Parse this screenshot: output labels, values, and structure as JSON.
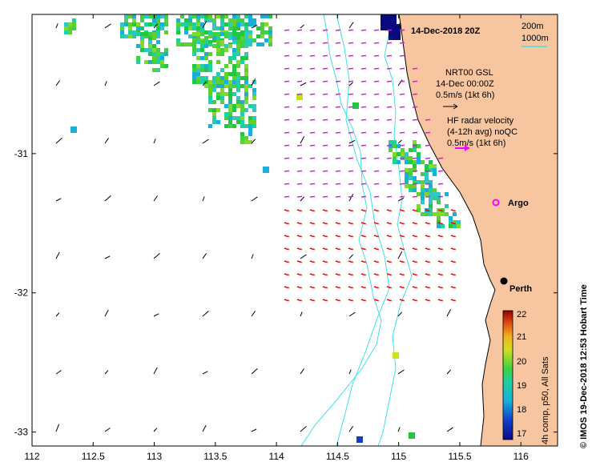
{
  "title": "14-Dec-2018 20Z",
  "depth_legend": {
    "contour1": "200m",
    "contour2": "1000m",
    "color": "#40e0e8"
  },
  "gsl_legend": {
    "line1": "NRT00 GSL",
    "line2": "14-Dec 00:00Z",
    "line3": "0.5m/s (1kt 6h)"
  },
  "hf_legend": {
    "line1": "HF radar velocity",
    "line2": "(4-12h avg) noQC",
    "line3": "0.5m/s (1kt 6h)",
    "arrow_color": "#ff00ff"
  },
  "markers": {
    "argo_label": "Argo",
    "city_label": "Perth"
  },
  "colorbar": {
    "ticks": [
      "22",
      "21",
      "20",
      "19",
      "18",
      "17"
    ],
    "label": "4h comp, p50, All Sats",
    "range": [
      17,
      22
    ]
  },
  "credit": "© IMOS 19-Dec-2018 12:53 Hobart Time",
  "axes": {
    "x_ticks": [
      "112",
      "112.5",
      "113",
      "113.5",
      "114",
      "114.5",
      "115",
      "115.5",
      "116"
    ],
    "y_ticks": [
      "-31",
      "-32",
      "-33"
    ],
    "x_range": [
      112,
      116.3
    ],
    "y_range": [
      -33.1,
      -30.0
    ]
  },
  "colors": {
    "land": "#f7c6a0",
    "coast": "#000000",
    "bathy": "#40e0e8",
    "hf_arrow_south": "#ff0000",
    "hf_arrow_north": "#ff00ff"
  }
}
